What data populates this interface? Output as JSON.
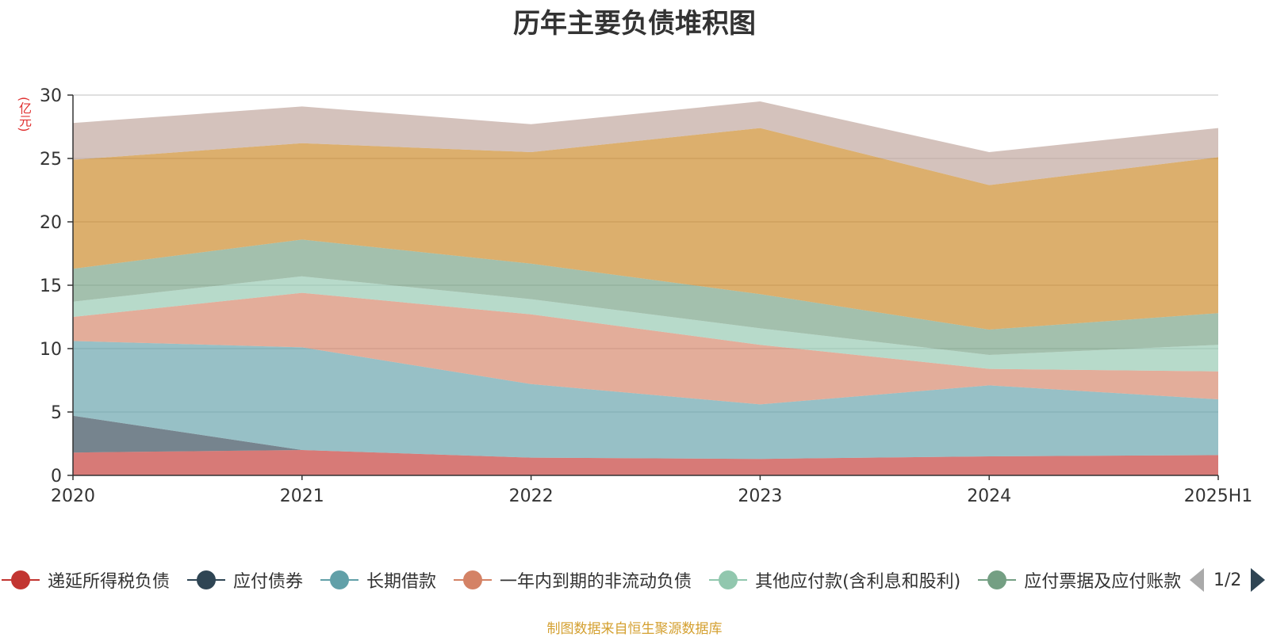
{
  "title": "历年主要负债堆积图",
  "unit_label": "(亿元)",
  "source_note": "制图数据来自恒生聚源数据库",
  "legend_pager": "1/2",
  "chart_data": {
    "type": "area",
    "stacked": true,
    "categories": [
      "2020",
      "2021",
      "2022",
      "2023",
      "2024",
      "2025H1"
    ],
    "ylim": [
      0,
      30
    ],
    "yticks": [
      0,
      5,
      10,
      15,
      20,
      25,
      30
    ],
    "grid": true,
    "legend_position": "bottom",
    "series": [
      {
        "name": "递延所得税负债",
        "color": "#c23531",
        "values": [
          1.8,
          2.0,
          1.4,
          1.3,
          1.5,
          1.6
        ]
      },
      {
        "name": "应付债券",
        "color": "#2f4554",
        "values": [
          2.9,
          0.0,
          0.0,
          0.0,
          0.0,
          0.0
        ]
      },
      {
        "name": "长期借款",
        "color": "#61a0a8",
        "values": [
          5.9,
          8.1,
          5.8,
          4.3,
          5.6,
          4.4
        ]
      },
      {
        "name": "一年内到期的非流动负债",
        "color": "#d48265",
        "values": [
          1.9,
          4.3,
          5.5,
          4.7,
          1.3,
          2.2
        ]
      },
      {
        "name": "其他应付款(含利息和股利)",
        "color": "#91c7ae",
        "values": [
          1.2,
          1.3,
          1.2,
          1.3,
          1.1,
          2.1
        ]
      },
      {
        "name": "应付票据及应付账款",
        "color": "#749f83",
        "values": [
          2.6,
          2.9,
          2.8,
          2.7,
          2.0,
          2.5
        ]
      },
      {
        "name": "",
        "color": "#ca8622",
        "values": [
          8.6,
          7.6,
          8.8,
          13.1,
          11.4,
          12.3
        ]
      },
      {
        "name": "",
        "color": "#bda29a",
        "values": [
          2.9,
          2.9,
          2.2,
          2.1,
          2.6,
          2.3
        ]
      }
    ]
  }
}
